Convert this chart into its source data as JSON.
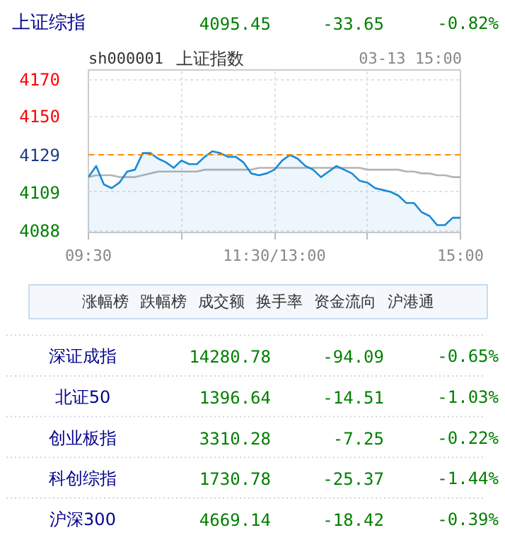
{
  "chart_data": {
    "type": "area",
    "title": "上证指数",
    "subtitle": "sh000001",
    "categories": [
      "09:30",
      null,
      null,
      null,
      null,
      null,
      null,
      null,
      null,
      null,
      null,
      null,
      null,
      null,
      null,
      null,
      null,
      null,
      null,
      null,
      null,
      null,
      null,
      null,
      "11:30/13:00",
      null,
      null,
      null,
      null,
      null,
      null,
      null,
      null,
      null,
      null,
      null,
      null,
      null,
      null,
      null,
      null,
      null,
      null,
      null,
      null,
      null,
      null,
      null,
      "15:00"
    ],
    "ylim": [
      4087,
      4175
    ],
    "yticks": [
      4088,
      4109,
      {
        "value": 4129.1,
        "label": "4129"
      },
      4150,
      4170
    ],
    "grid": true,
    "series": [
      {
        "type": "line",
        "color": "#b4b4b4",
        "values": [
          4117,
          4118,
          4118,
          4118,
          4117,
          4117,
          4117,
          4118,
          4119,
          4120,
          4120,
          4120,
          4120,
          4120,
          4120,
          4121,
          4121,
          4121,
          4121,
          4121,
          4121,
          4121,
          4122,
          4122,
          4122,
          4122,
          4122,
          4122,
          4122,
          4122,
          4122,
          4122,
          4122,
          4122,
          4122,
          4122,
          4121,
          4121,
          4121,
          4121,
          4121,
          4120,
          4120,
          4119,
          4119,
          4118,
          4118,
          4117,
          4117
        ]
      },
      {
        "color": "#1a8ad4",
        "values": [
          4117,
          4123,
          4113,
          4111,
          4114,
          4120,
          4121,
          4130,
          4130,
          4127,
          4125,
          4122,
          4126,
          4124,
          4124,
          4128,
          4131,
          4130,
          4128,
          4128,
          4125,
          4119,
          4118,
          4119,
          4121,
          4126,
          4129,
          4127,
          4123,
          4121,
          4117,
          4120,
          4123,
          4121,
          4119,
          4115,
          4114,
          4111,
          4110,
          4109,
          4107,
          4103,
          4103,
          4098,
          4096,
          4091,
          4091,
          4095,
          4095
        ]
      }
    ],
    "ref_lines": [
      {
        "axis": "y",
        "value": 4129.1,
        "label": null,
        "color": "#ff8c00",
        "line_style": "dashed"
      }
    ],
    "annotations": [
      "03-13 15:00",
      "上证综指",
      "4095.45",
      "-33.65",
      "-0.82%",
      "涨幅榜",
      "跌幅榜",
      "成交额",
      "换手率",
      "资金流向",
      "沪港通",
      "深证成指",
      "14280.78",
      "-94.09",
      "-0.65%",
      "北证50",
      "1396.64",
      "-14.51",
      "-1.03%",
      "创业板指",
      "3310.28",
      "-7.25",
      "-0.22%",
      "科创综指",
      "1730.78",
      "-25.37",
      "-1.44%",
      "沪深300",
      "4669.14",
      "-18.42",
      "-0.39%"
    ]
  }
}
